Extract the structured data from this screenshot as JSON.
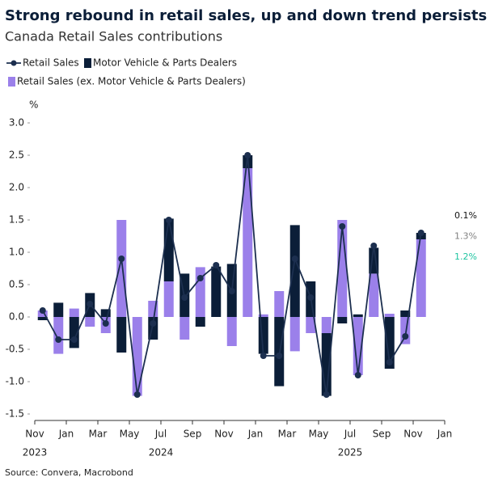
{
  "chart_data": {
    "type": "bar-line",
    "title": "Strong rebound in retail sales, up and down trend persists",
    "subtitle": "Canada Retail Sales contributions",
    "y_label": "%",
    "source": "Source: Convera, Macrobond",
    "x": [
      "2023-11",
      "2023-12",
      "2024-01",
      "2024-02",
      "2024-03",
      "2024-04",
      "2024-05",
      "2024-06",
      "2024-07",
      "2024-08",
      "2024-09",
      "2024-10",
      "2024-11",
      "2024-12",
      "2025-01",
      "2025-02",
      "2025-03",
      "2025-04",
      "2025-05",
      "2025-06",
      "2025-07",
      "2025-08",
      "2025-09",
      "2025-10",
      "2025-11"
    ],
    "series": [
      {
        "name": "Retail Sales",
        "kind": "line",
        "color": "#1c2f4f",
        "values": [
          0.1,
          -0.35,
          -0.35,
          0.2,
          -0.1,
          0.9,
          -1.2,
          -0.1,
          1.5,
          0.3,
          0.6,
          0.8,
          0.4,
          2.5,
          -0.6,
          -0.6,
          0.9,
          0.3,
          -1.2,
          1.4,
          -0.9,
          1.1,
          -0.7,
          -0.3,
          1.3
        ],
        "value_labels": [
          null,
          null,
          null,
          null,
          null,
          null,
          null,
          null,
          null,
          null,
          null,
          null,
          null,
          null,
          null,
          null,
          null,
          null,
          null,
          null,
          null,
          null,
          null,
          null,
          "1.3%"
        ],
        "label_color": "#808080"
      },
      {
        "name": "Motor Vehicle & Parts Dealers",
        "kind": "bar",
        "color": "#0b1e38",
        "values": [
          -0.05,
          0.22,
          -0.48,
          0.37,
          0.12,
          -0.55,
          0.0,
          -0.35,
          0.97,
          0.67,
          -0.15,
          0.78,
          0.82,
          0.2,
          -0.57,
          -1.07,
          1.42,
          0.55,
          -0.97,
          -0.1,
          0.04,
          0.4,
          -0.8,
          0.1,
          0.1
        ],
        "value_labels": [
          null,
          null,
          null,
          null,
          null,
          null,
          null,
          null,
          null,
          null,
          null,
          null,
          null,
          null,
          null,
          null,
          null,
          null,
          null,
          null,
          null,
          null,
          null,
          null,
          "0.1%"
        ],
        "label_color": "#111111"
      },
      {
        "name": "Retail Sales (ex. Motor Vehicle & Parts Dealers)",
        "kind": "bar",
        "color": "#9b80ea",
        "values": [
          0.1,
          -0.57,
          0.13,
          -0.15,
          -0.25,
          1.5,
          -1.22,
          0.25,
          0.55,
          -0.35,
          0.77,
          0.0,
          -0.45,
          2.3,
          0.04,
          0.4,
          -0.53,
          -0.25,
          -0.25,
          1.5,
          -0.9,
          0.67,
          0.05,
          -0.42,
          1.2
        ],
        "value_labels": [
          null,
          null,
          null,
          null,
          null,
          null,
          null,
          null,
          null,
          null,
          null,
          null,
          null,
          null,
          null,
          null,
          null,
          null,
          null,
          null,
          null,
          null,
          null,
          null,
          "1.2%"
        ],
        "label_color": "#1ec4a0"
      }
    ],
    "xlim": [
      "2023-11",
      "2026-01"
    ],
    "xticks": [
      {
        "value": "2023-11",
        "label": "Nov"
      },
      {
        "value": "2024-01",
        "label": "Jan"
      },
      {
        "value": "2024-03",
        "label": "Mar"
      },
      {
        "value": "2024-05",
        "label": "May"
      },
      {
        "value": "2024-07",
        "label": "Jul"
      },
      {
        "value": "2024-09",
        "label": "Sep"
      },
      {
        "value": "2024-11",
        "label": "Nov"
      },
      {
        "value": "2025-01",
        "label": "Jan"
      },
      {
        "value": "2025-03",
        "label": "Mar"
      },
      {
        "value": "2025-05",
        "label": "May"
      },
      {
        "value": "2025-07",
        "label": "Jul"
      },
      {
        "value": "2025-09",
        "label": "Sep"
      },
      {
        "value": "2025-11",
        "label": "Nov"
      },
      {
        "value": "2026-01",
        "label": "Jan"
      }
    ],
    "year_labels": [
      {
        "value": "2023-11",
        "label": "2023"
      },
      {
        "value": "2024-07",
        "label": "2024"
      },
      {
        "value": "2025-07",
        "label": "2025"
      }
    ],
    "ylim": [
      -1.6,
      3.1
    ],
    "yticks": [
      {
        "value": -1.5,
        "label": "-1.5"
      },
      {
        "value": -1,
        "label": "-1.0"
      },
      {
        "value": -0.5,
        "label": "-0.5"
      },
      {
        "value": 0,
        "label": "0.0"
      },
      {
        "value": 0.5,
        "label": "0.5"
      },
      {
        "value": 1,
        "label": "1.0"
      },
      {
        "value": 1.5,
        "label": "1.5"
      },
      {
        "value": 2,
        "label": "2.0"
      },
      {
        "value": 2.5,
        "label": "2.5"
      },
      {
        "value": 3,
        "label": "3.0"
      }
    ],
    "grid": false
  }
}
